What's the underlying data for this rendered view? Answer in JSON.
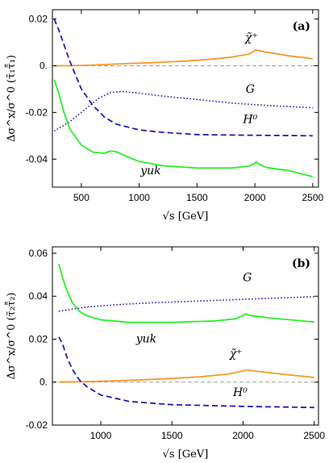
{
  "chart_data": [
    {
      "type": "line",
      "panel_label": "(a)",
      "xlabel": "√s [GeV]",
      "ylabel": "Δσ^x/σ^0 (τ̃₁τ̃̄₁)",
      "xlim": [
        250,
        2550
      ],
      "ylim": [
        -0.052,
        0.024
      ],
      "xticks": [
        500,
        1000,
        1500,
        2000,
        2500
      ],
      "yticks": [
        -0.04,
        -0.02,
        0.0,
        0.02
      ],
      "ytick_labels": [
        "-0.04",
        "-0.02",
        "0.",
        "0.02"
      ],
      "zero_line": true,
      "series": [
        {
          "name": "χ̃⁺",
          "color": "#f59a2a",
          "style": "solid",
          "x": [
            265,
            400,
            600,
            800,
            1000,
            1200,
            1400,
            1600,
            1800,
            1950,
            2010,
            2030,
            2100,
            2300,
            2500
          ],
          "y": [
            0.0,
            0.0,
            0.0003,
            0.0007,
            0.0011,
            0.0015,
            0.002,
            0.0027,
            0.0037,
            0.005,
            0.0068,
            0.0065,
            0.0058,
            0.0042,
            0.003
          ]
        },
        {
          "name": "G",
          "color": "#1d1db8",
          "style": "dotted",
          "x": [
            265,
            400,
            550,
            650,
            750,
            850,
            1000,
            1200,
            1500,
            1800,
            2100,
            2500
          ],
          "y": [
            -0.028,
            -0.024,
            -0.018,
            -0.014,
            -0.0115,
            -0.011,
            -0.0118,
            -0.013,
            -0.0145,
            -0.016,
            -0.017,
            -0.018
          ]
        },
        {
          "name": "H⁰",
          "color": "#1d1db8",
          "style": "dashed",
          "x": [
            265,
            300,
            400,
            500,
            600,
            700,
            800,
            1000,
            1200,
            1500,
            2000,
            2500
          ],
          "y": [
            0.02,
            0.016,
            0.002,
            -0.01,
            -0.017,
            -0.022,
            -0.025,
            -0.0275,
            -0.0285,
            -0.0295,
            -0.0298,
            -0.03
          ]
        },
        {
          "name": "yuk",
          "color": "#2aef2a",
          "style": "solid",
          "x": [
            265,
            300,
            350,
            400,
            500,
            600,
            700,
            750,
            800,
            900,
            1000,
            1200,
            1500,
            1800,
            1950,
            2000,
            2010,
            2030,
            2100,
            2300,
            2500
          ],
          "y": [
            -0.006,
            -0.011,
            -0.02,
            -0.027,
            -0.034,
            -0.037,
            -0.0375,
            -0.0365,
            -0.0368,
            -0.039,
            -0.041,
            -0.0428,
            -0.0438,
            -0.0438,
            -0.043,
            -0.0418,
            -0.0412,
            -0.042,
            -0.0436,
            -0.045,
            -0.0475
          ]
        }
      ],
      "annotations": [
        {
          "text": "χ̃⁺",
          "x": 1970,
          "y": 0.0105
        },
        {
          "text": "G",
          "x": 1960,
          "y": -0.0115
        },
        {
          "text": "H⁰",
          "x": 1960,
          "y": -0.0245
        },
        {
          "text": "yuk",
          "x": 1100,
          "y": -0.0465
        }
      ]
    },
    {
      "type": "line",
      "panel_label": "(b)",
      "xlabel": "√s [GeV]",
      "ylabel": "Δσ^x/σ^0 (τ̃₂τ̃̄₂)",
      "xlim": [
        660,
        2530
      ],
      "ylim": [
        -0.02,
        0.063
      ],
      "xticks": [
        1000,
        1500,
        2000,
        2500
      ],
      "yticks": [
        -0.02,
        0.0,
        0.02,
        0.04,
        0.06
      ],
      "ytick_labels": [
        "-0.02",
        "0.",
        "0.02",
        "0.04",
        "0.06"
      ],
      "zero_line": true,
      "series": [
        {
          "name": "χ̃⁺",
          "color": "#f59a2a",
          "style": "solid",
          "x": [
            705,
            900,
            1100,
            1300,
            1500,
            1700,
            1900,
            2000,
            2020,
            2100,
            2300,
            2500
          ],
          "y": [
            0.0,
            0.0002,
            0.0006,
            0.0011,
            0.0017,
            0.0025,
            0.0038,
            0.0052,
            0.0057,
            0.005,
            0.0035,
            0.0022
          ]
        },
        {
          "name": "G",
          "color": "#1d1db8",
          "style": "dotted",
          "x": [
            705,
            900,
            1100,
            1300,
            1500,
            1700,
            1900,
            2100,
            2300,
            2500
          ],
          "y": [
            0.033,
            0.035,
            0.036,
            0.0368,
            0.0373,
            0.0378,
            0.0383,
            0.0388,
            0.0393,
            0.0398
          ]
        },
        {
          "name": "H⁰",
          "color": "#1d1db8",
          "style": "dashed",
          "x": [
            705,
            730,
            760,
            800,
            850,
            900,
            1000,
            1200,
            1500,
            2000,
            2500
          ],
          "y": [
            0.021,
            0.018,
            0.012,
            0.006,
            0.001,
            -0.002,
            -0.006,
            -0.009,
            -0.0105,
            -0.0113,
            -0.0118
          ]
        },
        {
          "name": "yuk",
          "color": "#2aef2a",
          "style": "solid",
          "x": [
            705,
            730,
            760,
            800,
            850,
            900,
            1000,
            1200,
            1500,
            1800,
            1950,
            2000,
            2020,
            2050,
            2200,
            2500
          ],
          "y": [
            0.055,
            0.049,
            0.043,
            0.037,
            0.033,
            0.031,
            0.029,
            0.0278,
            0.0278,
            0.0285,
            0.0295,
            0.031,
            0.0318,
            0.031,
            0.0298,
            0.028
          ]
        }
      ],
      "annotations": [
        {
          "text": "G",
          "x": 2030,
          "y": 0.047
        },
        {
          "text": "yuk",
          "x": 1320,
          "y": 0.0185
        },
        {
          "text": "χ̃⁺",
          "x": 1950,
          "y": 0.0115
        },
        {
          "text": "H⁰",
          "x": 1980,
          "y": -0.0065
        }
      ]
    }
  ]
}
